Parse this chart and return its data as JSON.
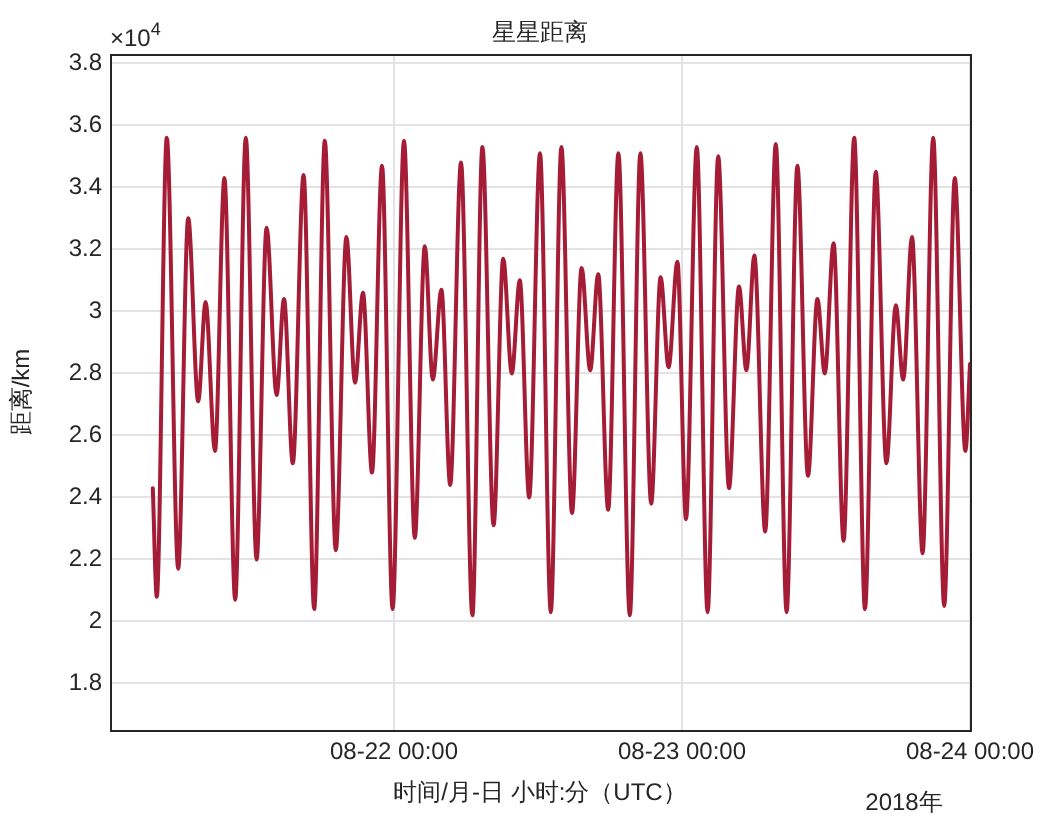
{
  "chart_data": {
    "type": "line",
    "title": "星星距离",
    "xlabel": "时间/月-日 小时:分（UTC）",
    "ylabel": "距离/km",
    "annotations": [
      "×10$^{4}$",
      "2018年"
    ],
    "x": [
      "2018-08-21T03:54",
      "2018-08-21T04:14",
      "2018-08-21T05:04",
      "2018-08-21T06:01",
      "2018-08-21T06:51",
      "2018-08-21T07:41",
      "2018-08-21T08:18",
      "2018-08-21T09:05",
      "2018-08-21T09:52",
      "2018-08-21T10:46",
      "2018-08-21T11:39",
      "2018-08-21T12:33",
      "2018-08-21T13:23",
      "2018-08-21T14:13",
      "2018-08-21T14:50",
      "2018-08-21T15:34",
      "2018-08-21T16:28",
      "2018-08-21T17:21",
      "2018-08-21T18:14",
      "2018-08-21T19:09",
      "2018-08-21T20:02",
      "2018-08-21T20:45",
      "2018-08-21T21:25",
      "2018-08-21T22:10",
      "2018-08-21T23:00",
      "2018-08-21T23:53",
      "2018-08-22T00:50",
      "2018-08-22T01:44",
      "2018-08-22T02:34",
      "2018-08-22T03:14",
      "2018-08-22T03:57",
      "2018-08-22T04:41",
      "2018-08-22T05:35",
      "2018-08-22T06:32",
      "2018-08-22T07:22",
      "2018-08-22T08:18",
      "2018-08-22T09:06",
      "2018-08-22T09:49",
      "2018-08-22T10:29",
      "2018-08-22T11:16",
      "2018-08-22T12:10",
      "2018-08-22T13:04",
      "2018-08-22T13:57",
      "2018-08-22T14:50",
      "2018-08-22T15:38",
      "2018-08-22T16:21",
      "2018-08-22T17:01",
      "2018-08-22T17:51",
      "2018-08-22T18:42",
      "2018-08-22T19:39",
      "2018-08-22T20:32",
      "2018-08-22T21:26",
      "2018-08-22T22:13",
      "2018-08-22T22:53",
      "2018-08-22T23:37",
      "2018-08-23T00:20",
      "2018-08-23T01:14",
      "2018-08-23T02:08",
      "2018-08-23T03:01",
      "2018-08-23T03:55",
      "2018-08-23T04:45",
      "2018-08-23T05:22",
      "2018-08-23T06:02",
      "2018-08-23T06:56",
      "2018-08-23T07:49",
      "2018-08-23T08:43",
      "2018-08-23T09:37",
      "2018-08-23T10:30",
      "2018-08-23T11:17",
      "2018-08-23T11:54",
      "2018-08-23T12:38",
      "2018-08-23T13:28",
      "2018-08-23T14:21",
      "2018-08-23T15:15",
      "2018-08-23T16:09",
      "2018-08-23T17:02",
      "2018-08-23T17:49",
      "2018-08-23T18:26",
      "2018-08-23T19:10",
      "2018-08-23T20:03",
      "2018-08-23T20:56",
      "2018-08-23T21:51",
      "2018-08-23T22:44",
      "2018-08-23T23:37",
      "2018-08-24T00:00"
    ],
    "series": [
      {
        "color": "#a51c36",
        "values": [
          2.43,
          2.08,
          3.56,
          2.17,
          3.3,
          2.71,
          3.03,
          2.55,
          3.43,
          2.07,
          3.56,
          2.2,
          3.27,
          2.73,
          3.04,
          2.51,
          3.44,
          2.04,
          3.55,
          2.23,
          3.24,
          2.77,
          3.06,
          2.48,
          3.47,
          2.04,
          3.55,
          2.27,
          3.21,
          2.78,
          3.07,
          2.44,
          3.48,
          2.02,
          3.53,
          2.31,
          3.17,
          2.8,
          3.1,
          2.4,
          3.51,
          2.03,
          3.53,
          2.35,
          3.14,
          2.81,
          3.12,
          2.36,
          3.51,
          2.02,
          3.51,
          2.38,
          3.11,
          2.82,
          3.16,
          2.33,
          3.53,
          2.03,
          3.5,
          2.43,
          3.08,
          2.81,
          3.18,
          2.29,
          3.54,
          2.03,
          3.47,
          2.47,
          3.04,
          2.8,
          3.22,
          2.26,
          3.56,
          2.04,
          3.45,
          2.51,
          3.02,
          2.78,
          3.24,
          2.22,
          3.56,
          2.05,
          3.43,
          2.55,
          2.83
        ]
      }
    ],
    "xlim": [
      "2018-08-21T00:20",
      "2018-08-24T00:00"
    ],
    "xticks": [
      {
        "value": "2018-08-22T00:00",
        "label": "08-22 00:00"
      },
      {
        "value": "2018-08-23T00:00",
        "label": "08-23 00:00"
      },
      {
        "value": "2018-08-24T00:00",
        "label": "08-24 00:00"
      }
    ],
    "ylim": [
      1.65,
      3.83
    ],
    "yticks": [
      1.8,
      2,
      2.2,
      2.4,
      2.6,
      2.8,
      3,
      3.2,
      3.4,
      3.6,
      3.8
    ],
    "grid": true,
    "line_style": "solid",
    "marker": "none"
  }
}
